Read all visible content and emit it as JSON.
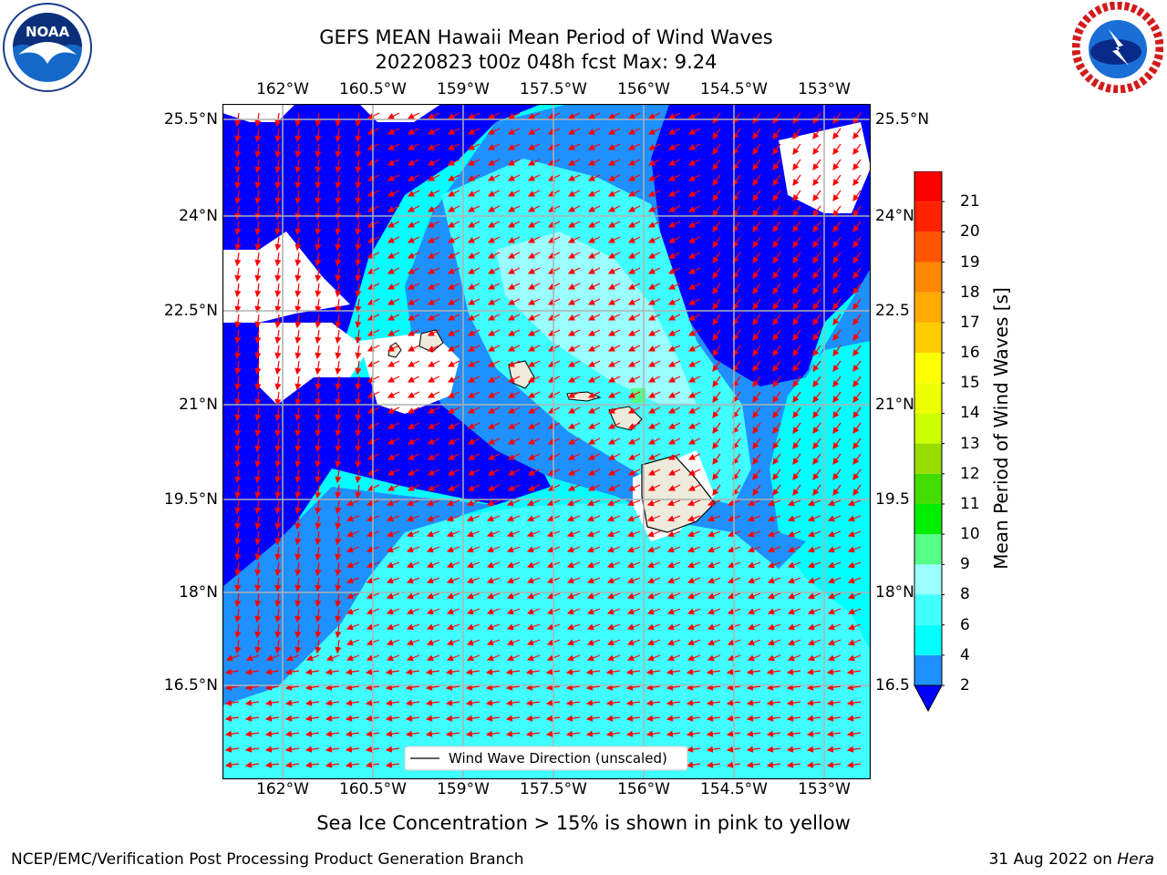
{
  "header": {
    "title_line1": "GEFS MEAN Hawaii Mean Period of Wind Waves",
    "title_line2": "20220823 t00z 048h fcst   Max: 9.24"
  },
  "logos": {
    "left": "noaa-logo",
    "right": "national-weather-service-logo"
  },
  "map": {
    "lon_ticks": [
      "162°W",
      "160.5°W",
      "159°W",
      "157.5°W",
      "156°W",
      "154.5°W",
      "153°W"
    ],
    "lat_ticks": [
      "25.5°N",
      "24°N",
      "22.5°N",
      "21°N",
      "19.5°N",
      "18°N",
      "16.5°N"
    ],
    "lat_ticks_right": [
      "25.5°N",
      "24°N",
      "22.5",
      "21°N",
      "19.5",
      "18°N",
      "16.5"
    ],
    "legend_label": "Wind Wave Direction (unscaled)",
    "arrow_color": "#ff0000",
    "land_color": "#efebdc",
    "missing_color": "#ffffff"
  },
  "colorbar": {
    "label": "Mean Period of Wind Waves [s]",
    "ticks": [
      "2",
      "4",
      "6",
      "8",
      "9",
      "10",
      "11",
      "12",
      "13",
      "14",
      "15",
      "16",
      "17",
      "18",
      "19",
      "20",
      "21"
    ],
    "colors": [
      "#0000ff",
      "#1e90ff",
      "#00ffff",
      "#40ffff",
      "#99ffff",
      "#55ff88",
      "#00ee00",
      "#44dd00",
      "#99dd00",
      "#ccff00",
      "#eeff00",
      "#ffff00",
      "#ffcc00",
      "#ffaa00",
      "#ff8800",
      "#ff5500",
      "#ff2200",
      "#ff0000"
    ]
  },
  "footer": {
    "note": "Sea Ice Concentration > 15% is shown in pink to yellow",
    "left": "NCEP/EMC/Verification Post Processing Product Generation Branch",
    "right_prefix": "31 Aug 2022 on ",
    "right_host": "Hera"
  }
}
